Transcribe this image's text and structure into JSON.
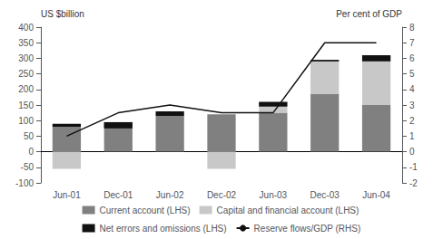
{
  "chart_data": {
    "type": "bar",
    "stacked": true,
    "categories": [
      "Jun-01",
      "Dec-01",
      "Jun-02",
      "Dec-02",
      "Jun-03",
      "Dec-03",
      "Jun-04"
    ],
    "series": [
      {
        "name": "Current account (LHS)",
        "color": "#808080",
        "values": [
          80,
          95,
          115,
          120,
          125,
          185,
          150
        ]
      },
      {
        "name": "Capital and financial account (LHS)",
        "color": "#c8c8c8",
        "values": [
          -55,
          0,
          0,
          -55,
          35,
          110,
          160
        ]
      },
      {
        "name": "Net errors and omissions (LHS)",
        "color": "#111111",
        "values": [
          10,
          -20,
          15,
          0,
          -15,
          -5,
          -20
        ]
      },
      {
        "name": "Reserve flows/GDP (RHS)",
        "type": "line",
        "axis": "y2",
        "color": "#111111",
        "values": [
          1.0,
          2.5,
          3.0,
          2.5,
          2.5,
          7.0,
          7.0
        ]
      }
    ],
    "ylabel": "US $billion",
    "y2label": "Per cent of GDP",
    "ylim": [
      -100,
      400
    ],
    "yticks": [
      -100,
      -50,
      0,
      50,
      100,
      150,
      200,
      250,
      300,
      350,
      400
    ],
    "y2lim": [
      -2,
      8
    ],
    "y2ticks": [
      -2,
      -1,
      0,
      1,
      2,
      3,
      4,
      5,
      6,
      7,
      8
    ],
    "grid": false,
    "legend": "bottom"
  }
}
